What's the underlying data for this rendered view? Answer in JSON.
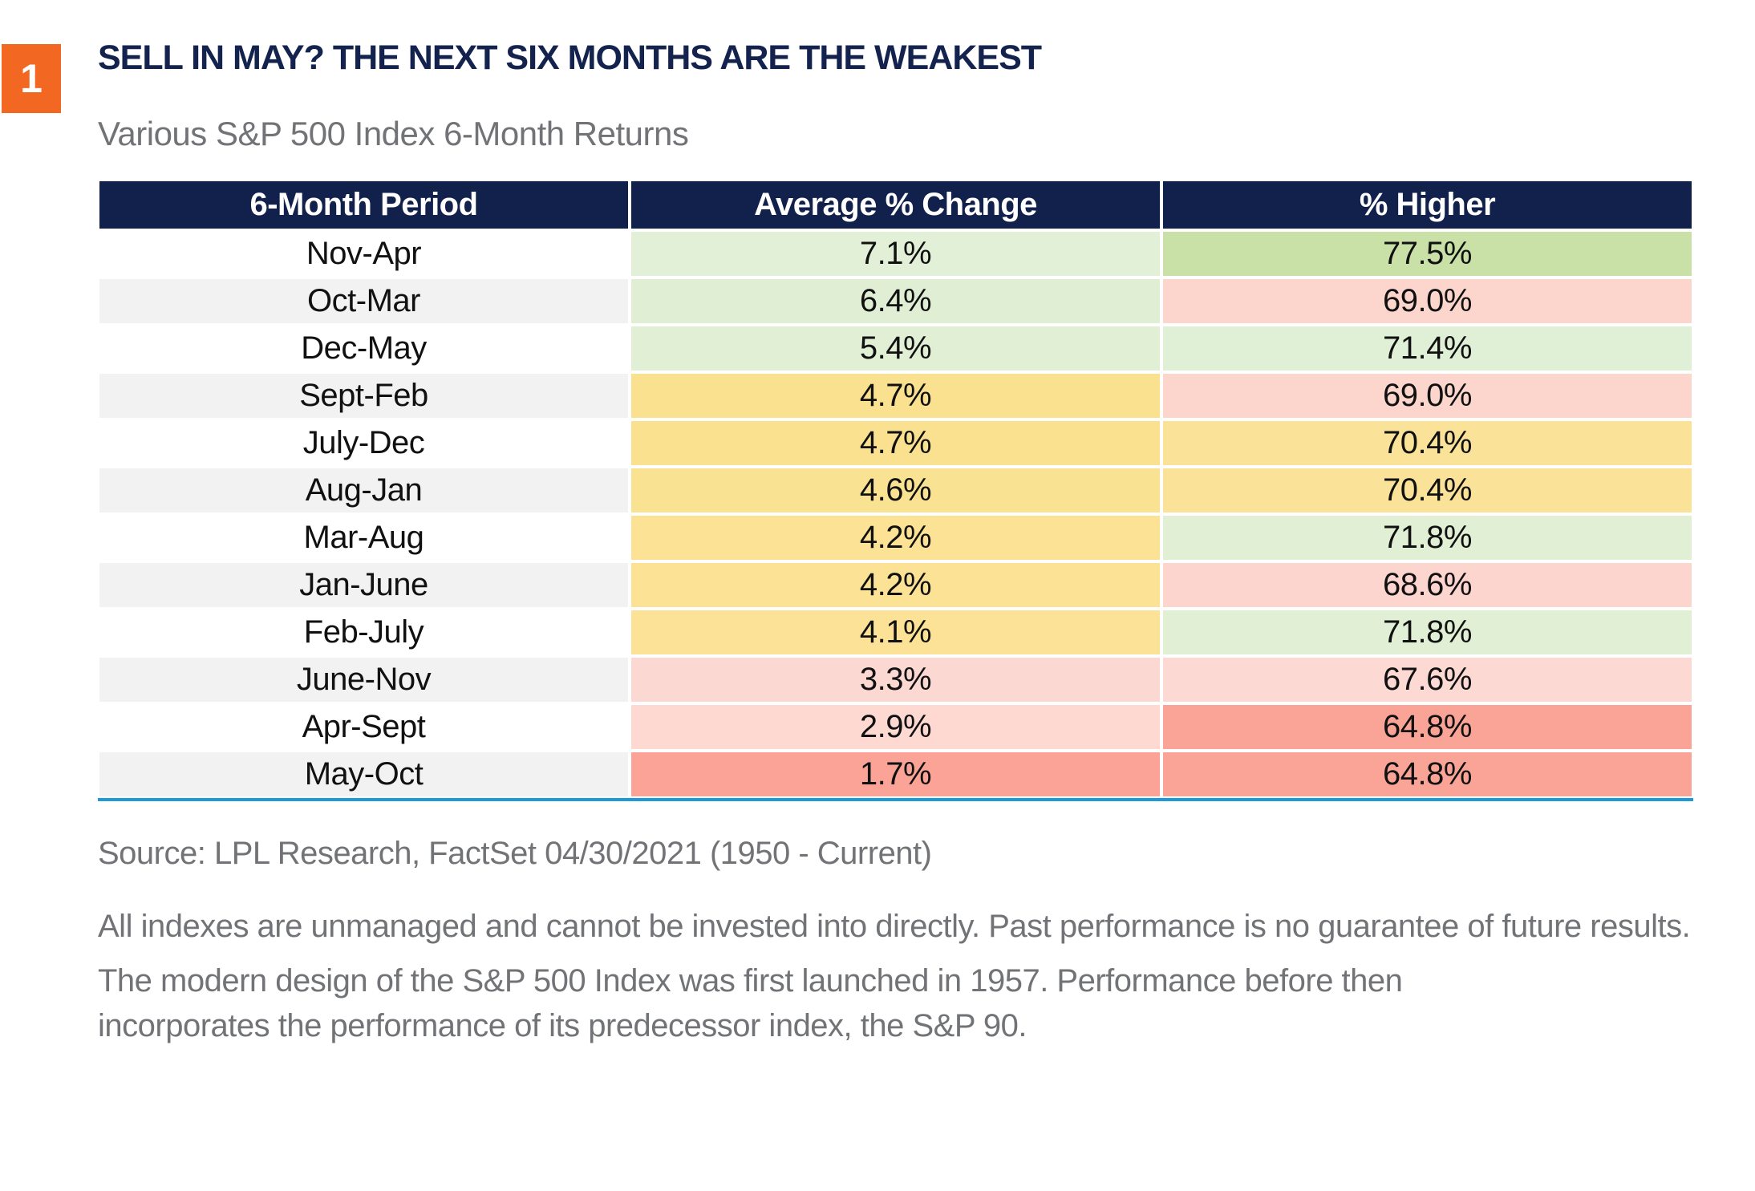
{
  "badge": {
    "number": "1"
  },
  "header": {
    "title": "SELL IN MAY? THE NEXT SIX MONTHS ARE THE WEAKEST",
    "subtitle": "Various S&P 500 Index 6-Month Returns"
  },
  "table": {
    "headers": [
      "6-Month Period",
      "Average % Change",
      "% Higher"
    ],
    "rows": [
      {
        "period": "Nov-Apr",
        "avg": "7.1%",
        "higher": "77.5%",
        "avg_bg": "#e3f0d8",
        "higher_bg": "#c9e1a6"
      },
      {
        "period": "Oct-Mar",
        "avg": "6.4%",
        "higher": "69.0%",
        "avg_bg": "#e0eed3",
        "higher_bg": "#fcd6cd"
      },
      {
        "period": "Dec-May",
        "avg": "5.4%",
        "higher": "71.4%",
        "avg_bg": "#e1efd5",
        "higher_bg": "#e0f0d6"
      },
      {
        "period": "Sept-Feb",
        "avg": "4.7%",
        "higher": "69.0%",
        "avg_bg": "#fae18f",
        "higher_bg": "#fcd6cd"
      },
      {
        "period": "July-Dec",
        "avg": "4.7%",
        "higher": "70.4%",
        "avg_bg": "#fae190",
        "higher_bg": "#fae398"
      },
      {
        "period": "Aug-Jan",
        "avg": "4.6%",
        "higher": "70.4%",
        "avg_bg": "#fae293",
        "higher_bg": "#fae398"
      },
      {
        "period": "Mar-Aug",
        "avg": "4.2%",
        "higher": "71.8%",
        "avg_bg": "#fbe295",
        "higher_bg": "#e1efd5"
      },
      {
        "period": "Jan-June",
        "avg": "4.2%",
        "higher": "68.6%",
        "avg_bg": "#fbe295",
        "higher_bg": "#fcd5ce"
      },
      {
        "period": "Feb-July",
        "avg": "4.1%",
        "higher": "71.8%",
        "avg_bg": "#fbe296",
        "higher_bg": "#e1efd5"
      },
      {
        "period": "June-Nov",
        "avg": "3.3%",
        "higher": "67.6%",
        "avg_bg": "#fcd8d2",
        "higher_bg": "#fcd9d3"
      },
      {
        "period": "Apr-Sept",
        "avg": "2.9%",
        "higher": "64.8%",
        "avg_bg": "#fdd9d2",
        "higher_bg": "#f9a496"
      },
      {
        "period": "May-Oct",
        "avg": "1.7%",
        "higher": "64.8%",
        "avg_bg": "#faa396",
        "higher_bg": "#f9a496"
      }
    ]
  },
  "footer": {
    "source": "Source: LPL Research, FactSet 04/30/2021 (1950 - Current)",
    "disclaimer1": "All indexes are unmanaged and cannot be invested into directly. Past performance is no guarantee of future results.",
    "disclaimer2": "The modern design of the S&P 500 Index was first launched in 1957. Performance before then incorporates the performance of its predecessor index, the S&P 90."
  },
  "colors": {
    "header_bg": "#12204c",
    "title_navy": "#13234e",
    "accent_orange": "#f26722",
    "bottom_border_blue": "#1e9ad6",
    "row_stripe_gray": "#f2f2f3",
    "text_gray": "#717376"
  },
  "chart_data": {
    "type": "table",
    "title": "SELL IN MAY? THE NEXT SIX MONTHS ARE THE WEAKEST",
    "subtitle": "Various S&P 500 Index 6-Month Returns",
    "figure_number": 1,
    "columns": [
      "6-Month Period",
      "Average % Change",
      "% Higher"
    ],
    "rows": [
      [
        "Nov-Apr",
        7.1,
        77.5
      ],
      [
        "Oct-Mar",
        6.4,
        69.0
      ],
      [
        "Dec-May",
        5.4,
        71.4
      ],
      [
        "Sept-Feb",
        4.7,
        69.0
      ],
      [
        "July-Dec",
        4.7,
        70.4
      ],
      [
        "Aug-Jan",
        4.6,
        70.4
      ],
      [
        "Mar-Aug",
        4.2,
        71.8
      ],
      [
        "Jan-June",
        4.2,
        68.6
      ],
      [
        "Feb-July",
        4.1,
        71.8
      ],
      [
        "June-Nov",
        3.3,
        67.6
      ],
      [
        "Apr-Sept",
        2.9,
        64.8
      ],
      [
        "May-Oct",
        1.7,
        64.8
      ]
    ],
    "notes": {
      "units": "percent",
      "heatmap": "cells shaded green (best) through yellow to red (worst) per column",
      "source": "Source: LPL Research, FactSet 04/30/2021 (1950 - Current)"
    }
  }
}
